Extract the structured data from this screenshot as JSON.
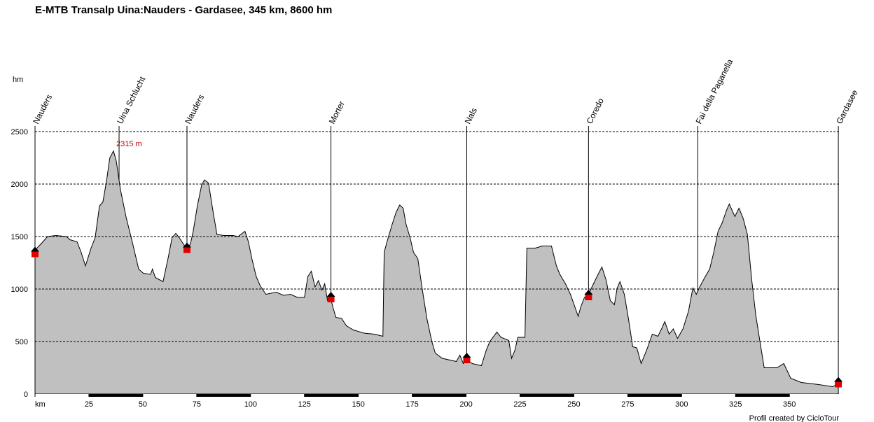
{
  "chart_data": {
    "type": "area",
    "title": "E-MTB Transalp Uina:Nauders - Gardasee, 345 km, 8600 hm",
    "y_label": "hm",
    "credit": "Profil created by CicloTour",
    "color": "#c0c0c0",
    "grid": true,
    "xlim": [
      0,
      373
    ],
    "ylim": [
      0,
      2500
    ],
    "xticks": [
      {
        "value": 0,
        "label": "km"
      },
      25,
      50,
      75,
      100,
      125,
      150,
      175,
      200,
      225,
      250,
      275,
      300,
      325,
      350
    ],
    "yticks": [
      0,
      500,
      1000,
      1500,
      2000,
      2500
    ],
    "x": [
      0,
      3.2,
      5.8,
      9.7,
      14.6,
      16.2,
      19.5,
      21.4,
      23.4,
      26,
      27.9,
      29.9,
      31.5,
      33.1,
      34.7,
      36.4,
      37.7,
      39.6,
      42.2,
      45.1,
      48.1,
      50.3,
      53.6,
      54.5,
      55.8,
      59.4,
      61.7,
      63.6,
      65.3,
      66.9,
      68.8,
      70.5,
      72.1,
      73.4,
      75.3,
      77.3,
      78.6,
      80.5,
      82.5,
      84.4,
      87.7,
      91.9,
      94.2,
      96.1,
      97.4,
      99,
      100.6,
      102.6,
      104.5,
      107.1,
      111.9,
      115.3,
      118.5,
      121.8,
      125,
      126.6,
      128.2,
      129.9,
      131.5,
      133.1,
      134.4,
      135.7,
      137.3,
      138.3,
      139.6,
      142.2,
      144.5,
      147.7,
      152.6,
      157.5,
      161.4,
      162,
      163.3,
      165.6,
      167.5,
      169.2,
      170.8,
      172.1,
      174,
      175.6,
      177.6,
      179.5,
      181.8,
      184.1,
      185.7,
      188.9,
      193.2,
      195.5,
      197.1,
      198.7,
      200.3,
      202.9,
      207.1,
      209.4,
      211,
      214.3,
      216.2,
      219.8,
      221.1,
      222.7,
      224,
      227.3,
      228.2,
      232.1,
      235.4,
      239.6,
      241.9,
      243.5,
      246.1,
      248.4,
      252,
      253.2,
      254.9,
      256.8,
      259.1,
      261,
      263,
      264.9,
      266.9,
      268.8,
      270.1,
      271.4,
      273.4,
      275.3,
      277.3,
      279.2,
      281.2,
      283.8,
      286.4,
      289,
      290.9,
      292.2,
      294.2,
      296.1,
      298.1,
      300.6,
      303.2,
      305.2,
      306.8,
      308.4,
      311,
      313,
      314.9,
      316.9,
      318.8,
      320.8,
      322.1,
      324.7,
      326.6,
      328.6,
      330.5,
      332.5,
      334.4,
      336.4,
      338.3,
      344.2,
      347.4,
      350.6,
      355.5,
      363.6,
      370.1,
      372.7
    ],
    "values": [
      1370,
      1440,
      1500,
      1510,
      1500,
      1470,
      1450,
      1350,
      1220,
      1390,
      1490,
      1790,
      1830,
      2020,
      2250,
      2315,
      2220,
      1950,
      1690,
      1450,
      1190,
      1150,
      1140,
      1190,
      1110,
      1070,
      1290,
      1490,
      1530,
      1490,
      1430,
      1380,
      1430,
      1550,
      1790,
      1990,
      2040,
      2010,
      1750,
      1520,
      1510,
      1510,
      1500,
      1530,
      1550,
      1450,
      1290,
      1120,
      1030,
      950,
      970,
      940,
      950,
      920,
      920,
      1120,
      1170,
      1020,
      1080,
      990,
      1050,
      890,
      900,
      820,
      730,
      720,
      650,
      610,
      580,
      570,
      550,
      1350,
      1450,
      1610,
      1730,
      1800,
      1770,
      1620,
      1490,
      1350,
      1290,
      1020,
      720,
      500,
      390,
      340,
      320,
      310,
      370,
      290,
      320,
      290,
      270,
      420,
      500,
      590,
      540,
      510,
      340,
      420,
      540,
      540,
      1390,
      1390,
      1410,
      1410,
      1220,
      1140,
      1050,
      950,
      740,
      830,
      920,
      950,
      1050,
      1130,
      1210,
      1090,
      890,
      850,
      1010,
      1070,
      950,
      720,
      450,
      440,
      290,
      420,
      570,
      550,
      630,
      690,
      570,
      620,
      530,
      620,
      790,
      1010,
      950,
      1020,
      1120,
      1190,
      1350,
      1550,
      1630,
      1750,
      1810,
      1690,
      1770,
      1670,
      1520,
      1090,
      750,
      490,
      250,
      250,
      290,
      150,
      110,
      90,
      70,
      100
    ],
    "waypoints": [
      {
        "name": "Nauders",
        "x": 0,
        "y": 1350
      },
      {
        "name": "Uina Schlucht",
        "x": 39
      },
      {
        "name": "Nauders",
        "x": 70.5,
        "y": 1390
      },
      {
        "name": "Morter",
        "x": 137.3,
        "y": 920
      },
      {
        "name": "Nals",
        "x": 200.3,
        "y": 340
      },
      {
        "name": "Coredo",
        "x": 256.8,
        "y": 940
      },
      {
        "name": "Fai della Paganella",
        "x": 307.5
      },
      {
        "name": "Gardasee",
        "x": 372.7,
        "y": 110
      }
    ],
    "annotations": [
      {
        "text": "2315 m",
        "x": 36.4,
        "y": 2315
      }
    ]
  }
}
